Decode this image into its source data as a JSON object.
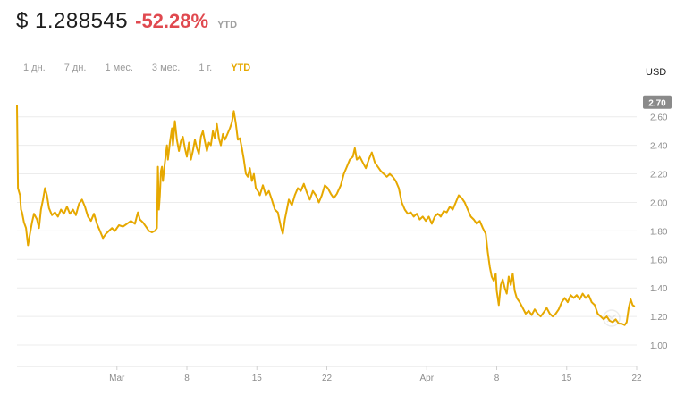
{
  "header": {
    "price": "$ 1.288545",
    "change": "-52.28%",
    "change_color": "#e0494f",
    "period": "YTD"
  },
  "tabs": [
    {
      "label": "1 дн.",
      "active": false
    },
    {
      "label": "7 дн.",
      "active": false
    },
    {
      "label": "1 мес.",
      "active": false
    },
    {
      "label": "3 мес.",
      "active": false
    },
    {
      "label": "1 г.",
      "active": false
    },
    {
      "label": "YTD",
      "active": true
    }
  ],
  "accent_color": "#e6a800",
  "currency_label": "USD",
  "chart_data": {
    "type": "line",
    "ylim": [
      0.85,
      2.78
    ],
    "y_ticks": [
      "1.00",
      "1.20",
      "1.40",
      "1.60",
      "1.80",
      "2.00",
      "2.20",
      "2.40",
      "2.60"
    ],
    "current_value_badge": "2.70",
    "x_ticks": [
      {
        "label": "Mar",
        "day": 0
      },
      {
        "label": "8",
        "day": 7
      },
      {
        "label": "15",
        "day": 14
      },
      {
        "label": "22",
        "day": 21
      },
      {
        "label": "Apr",
        "day": 31
      },
      {
        "label": "8",
        "day": 38
      },
      {
        "label": "15",
        "day": 45
      },
      {
        "label": "22",
        "day": 52
      }
    ],
    "series": [
      {
        "color": "#e6a800",
        "points": [
          [
            -10.0,
            2.68
          ],
          [
            -9.9,
            2.1
          ],
          [
            -9.7,
            2.05
          ],
          [
            -9.6,
            1.95
          ],
          [
            -9.5,
            1.93
          ],
          [
            -9.3,
            1.86
          ],
          [
            -9.1,
            1.82
          ],
          [
            -8.9,
            1.7
          ],
          [
            -8.7,
            1.78
          ],
          [
            -8.5,
            1.86
          ],
          [
            -8.3,
            1.92
          ],
          [
            -8.0,
            1.88
          ],
          [
            -7.8,
            1.82
          ],
          [
            -7.6,
            1.95
          ],
          [
            -7.4,
            2.02
          ],
          [
            -7.2,
            2.1
          ],
          [
            -7.0,
            2.05
          ],
          [
            -6.8,
            1.96
          ],
          [
            -6.5,
            1.91
          ],
          [
            -6.2,
            1.93
          ],
          [
            -5.9,
            1.9
          ],
          [
            -5.6,
            1.95
          ],
          [
            -5.3,
            1.92
          ],
          [
            -5.0,
            1.97
          ],
          [
            -4.7,
            1.92
          ],
          [
            -4.4,
            1.95
          ],
          [
            -4.1,
            1.91
          ],
          [
            -3.8,
            1.99
          ],
          [
            -3.5,
            2.02
          ],
          [
            -3.2,
            1.97
          ],
          [
            -2.9,
            1.9
          ],
          [
            -2.6,
            1.87
          ],
          [
            -2.3,
            1.92
          ],
          [
            -2.0,
            1.85
          ],
          [
            -1.7,
            1.8
          ],
          [
            -1.4,
            1.75
          ],
          [
            -1.1,
            1.78
          ],
          [
            -0.8,
            1.8
          ],
          [
            -0.5,
            1.82
          ],
          [
            -0.2,
            1.8
          ],
          [
            0.2,
            1.84
          ],
          [
            0.6,
            1.83
          ],
          [
            1.0,
            1.85
          ],
          [
            1.4,
            1.87
          ],
          [
            1.8,
            1.85
          ],
          [
            2.1,
            1.93
          ],
          [
            2.3,
            1.88
          ],
          [
            2.6,
            1.86
          ],
          [
            2.9,
            1.83
          ],
          [
            3.2,
            1.8
          ],
          [
            3.5,
            1.79
          ],
          [
            3.8,
            1.8
          ],
          [
            4.0,
            1.82
          ],
          [
            4.1,
            2.25
          ],
          [
            4.2,
            1.95
          ],
          [
            4.3,
            2.05
          ],
          [
            4.4,
            2.22
          ],
          [
            4.5,
            2.25
          ],
          [
            4.6,
            2.15
          ],
          [
            4.8,
            2.28
          ],
          [
            5.0,
            2.4
          ],
          [
            5.1,
            2.3
          ],
          [
            5.3,
            2.42
          ],
          [
            5.5,
            2.52
          ],
          [
            5.6,
            2.4
          ],
          [
            5.8,
            2.57
          ],
          [
            6.0,
            2.44
          ],
          [
            6.2,
            2.36
          ],
          [
            6.4,
            2.43
          ],
          [
            6.6,
            2.46
          ],
          [
            6.8,
            2.38
          ],
          [
            7.0,
            2.32
          ],
          [
            7.2,
            2.42
          ],
          [
            7.4,
            2.3
          ],
          [
            7.6,
            2.36
          ],
          [
            7.8,
            2.44
          ],
          [
            8.0,
            2.38
          ],
          [
            8.2,
            2.34
          ],
          [
            8.4,
            2.46
          ],
          [
            8.6,
            2.5
          ],
          [
            8.8,
            2.43
          ],
          [
            9.0,
            2.36
          ],
          [
            9.2,
            2.42
          ],
          [
            9.4,
            2.4
          ],
          [
            9.6,
            2.5
          ],
          [
            9.8,
            2.45
          ],
          [
            10.0,
            2.55
          ],
          [
            10.2,
            2.45
          ],
          [
            10.4,
            2.4
          ],
          [
            10.6,
            2.48
          ],
          [
            10.8,
            2.44
          ],
          [
            11.0,
            2.47
          ],
          [
            11.3,
            2.52
          ],
          [
            11.5,
            2.56
          ],
          [
            11.7,
            2.64
          ],
          [
            11.9,
            2.55
          ],
          [
            12.1,
            2.44
          ],
          [
            12.3,
            2.45
          ],
          [
            12.5,
            2.38
          ],
          [
            12.7,
            2.3
          ],
          [
            12.9,
            2.2
          ],
          [
            13.1,
            2.18
          ],
          [
            13.3,
            2.24
          ],
          [
            13.5,
            2.15
          ],
          [
            13.7,
            2.2
          ],
          [
            13.9,
            2.1
          ],
          [
            14.1,
            2.08
          ],
          [
            14.3,
            2.05
          ],
          [
            14.6,
            2.12
          ],
          [
            14.9,
            2.05
          ],
          [
            15.2,
            2.08
          ],
          [
            15.5,
            2.02
          ],
          [
            15.8,
            1.95
          ],
          [
            16.1,
            1.93
          ],
          [
            16.4,
            1.83
          ],
          [
            16.6,
            1.78
          ],
          [
            16.8,
            1.88
          ],
          [
            17.0,
            1.95
          ],
          [
            17.2,
            2.02
          ],
          [
            17.5,
            1.98
          ],
          [
            17.8,
            2.05
          ],
          [
            18.1,
            2.1
          ],
          [
            18.4,
            2.08
          ],
          [
            18.7,
            2.13
          ],
          [
            19.0,
            2.07
          ],
          [
            19.3,
            2.02
          ],
          [
            19.6,
            2.08
          ],
          [
            19.9,
            2.05
          ],
          [
            20.2,
            2.0
          ],
          [
            20.5,
            2.05
          ],
          [
            20.8,
            2.12
          ],
          [
            21.1,
            2.1
          ],
          [
            21.4,
            2.06
          ],
          [
            21.7,
            2.03
          ],
          [
            22.0,
            2.06
          ],
          [
            22.4,
            2.12
          ],
          [
            22.7,
            2.2
          ],
          [
            23.0,
            2.25
          ],
          [
            23.3,
            2.3
          ],
          [
            23.6,
            2.32
          ],
          [
            23.8,
            2.38
          ],
          [
            24.0,
            2.3
          ],
          [
            24.3,
            2.32
          ],
          [
            24.6,
            2.28
          ],
          [
            24.9,
            2.24
          ],
          [
            25.2,
            2.3
          ],
          [
            25.5,
            2.35
          ],
          [
            25.8,
            2.28
          ],
          [
            26.1,
            2.25
          ],
          [
            26.4,
            2.22
          ],
          [
            26.7,
            2.2
          ],
          [
            27.0,
            2.18
          ],
          [
            27.3,
            2.2
          ],
          [
            27.6,
            2.18
          ],
          [
            27.9,
            2.15
          ],
          [
            28.2,
            2.1
          ],
          [
            28.5,
            2.0
          ],
          [
            28.8,
            1.95
          ],
          [
            29.1,
            1.92
          ],
          [
            29.4,
            1.93
          ],
          [
            29.7,
            1.9
          ],
          [
            30.0,
            1.92
          ],
          [
            30.3,
            1.88
          ],
          [
            30.6,
            1.9
          ],
          [
            30.9,
            1.87
          ],
          [
            31.2,
            1.9
          ],
          [
            31.5,
            1.85
          ],
          [
            31.8,
            1.9
          ],
          [
            32.1,
            1.92
          ],
          [
            32.4,
            1.9
          ],
          [
            32.7,
            1.94
          ],
          [
            33.0,
            1.93
          ],
          [
            33.3,
            1.97
          ],
          [
            33.6,
            1.95
          ],
          [
            33.9,
            2.0
          ],
          [
            34.2,
            2.05
          ],
          [
            34.5,
            2.03
          ],
          [
            34.8,
            2.0
          ],
          [
            35.1,
            1.95
          ],
          [
            35.4,
            1.9
          ],
          [
            35.7,
            1.88
          ],
          [
            36.0,
            1.85
          ],
          [
            36.3,
            1.87
          ],
          [
            36.6,
            1.82
          ],
          [
            36.9,
            1.78
          ],
          [
            37.1,
            1.65
          ],
          [
            37.3,
            1.55
          ],
          [
            37.5,
            1.48
          ],
          [
            37.7,
            1.45
          ],
          [
            37.9,
            1.5
          ],
          [
            38.0,
            1.38
          ],
          [
            38.2,
            1.28
          ],
          [
            38.4,
            1.42
          ],
          [
            38.6,
            1.46
          ],
          [
            38.8,
            1.4
          ],
          [
            39.0,
            1.36
          ],
          [
            39.2,
            1.48
          ],
          [
            39.4,
            1.42
          ],
          [
            39.6,
            1.5
          ],
          [
            39.8,
            1.38
          ],
          [
            40.0,
            1.33
          ],
          [
            40.3,
            1.3
          ],
          [
            40.6,
            1.26
          ],
          [
            40.9,
            1.22
          ],
          [
            41.2,
            1.24
          ],
          [
            41.5,
            1.21
          ],
          [
            41.8,
            1.25
          ],
          [
            42.1,
            1.22
          ],
          [
            42.4,
            1.2
          ],
          [
            42.7,
            1.23
          ],
          [
            43.0,
            1.26
          ],
          [
            43.3,
            1.22
          ],
          [
            43.6,
            1.2
          ],
          [
            43.9,
            1.22
          ],
          [
            44.2,
            1.25
          ],
          [
            44.5,
            1.3
          ],
          [
            44.8,
            1.33
          ],
          [
            45.1,
            1.3
          ],
          [
            45.4,
            1.35
          ],
          [
            45.7,
            1.33
          ],
          [
            46.0,
            1.35
          ],
          [
            46.3,
            1.32
          ],
          [
            46.6,
            1.36
          ],
          [
            46.9,
            1.33
          ],
          [
            47.2,
            1.35
          ],
          [
            47.5,
            1.3
          ],
          [
            47.8,
            1.28
          ],
          [
            48.1,
            1.22
          ],
          [
            48.4,
            1.2
          ],
          [
            48.7,
            1.18
          ],
          [
            49.0,
            1.2
          ],
          [
            49.3,
            1.17
          ],
          [
            49.6,
            1.16
          ],
          [
            49.9,
            1.18
          ],
          [
            50.2,
            1.15
          ],
          [
            50.5,
            1.15
          ],
          [
            50.8,
            1.14
          ],
          [
            51.0,
            1.16
          ],
          [
            51.2,
            1.26
          ],
          [
            51.4,
            1.32
          ],
          [
            51.6,
            1.28
          ],
          [
            51.8,
            1.27
          ]
        ]
      }
    ]
  }
}
